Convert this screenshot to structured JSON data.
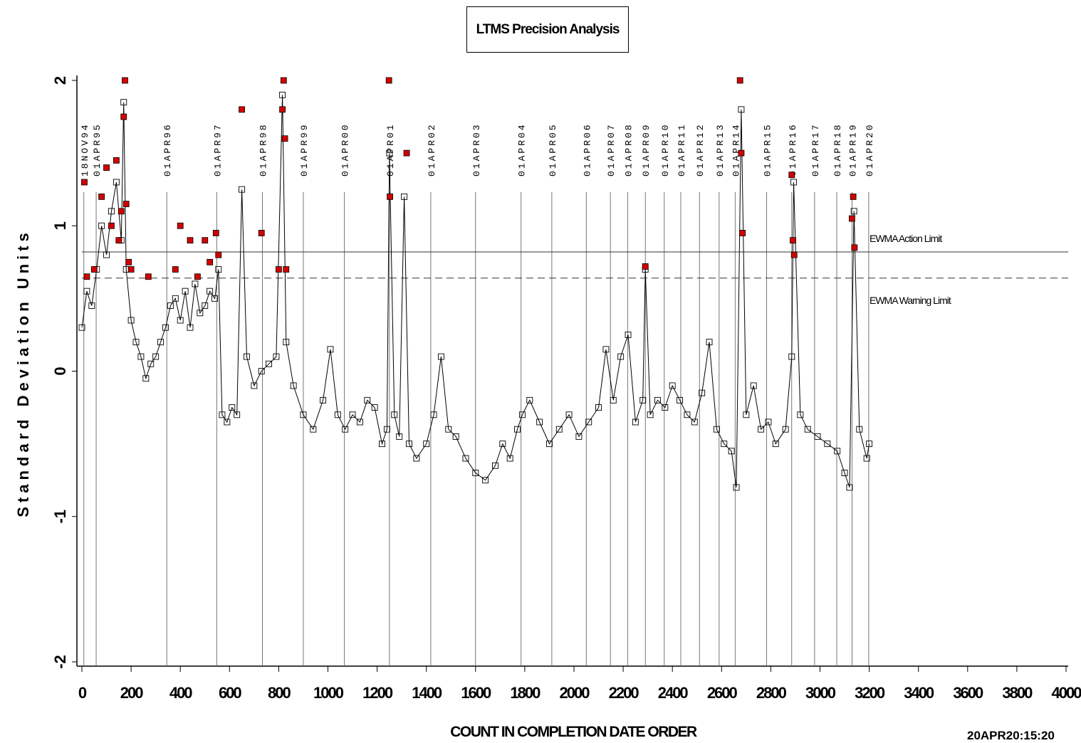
{
  "chart_data": {
    "type": "line",
    "title": "LTMS Precision Analysis",
    "xlabel": "COUNT IN COMPLETION DATE ORDER",
    "ylabel": "Standard Deviation Units",
    "xlim": [
      0,
      4000
    ],
    "ylim": [
      -2,
      2
    ],
    "x_ticks": [
      0,
      200,
      400,
      600,
      800,
      1000,
      1200,
      1400,
      1600,
      1800,
      2000,
      2200,
      2400,
      2600,
      2800,
      3000,
      3200,
      3400,
      3600,
      3800,
      4000
    ],
    "y_ticks": [
      -2,
      -1,
      0,
      1,
      2
    ],
    "y_tick_labels": [
      "-2",
      "-1",
      "0",
      "1",
      "2"
    ],
    "reference_lines": [
      {
        "name": "EWMA Action Limit",
        "y": 0.82,
        "style": "solid"
      },
      {
        "name": "EWMA Warning Limit",
        "y": 0.64,
        "style": "dashed"
      }
    ],
    "date_markers": [
      {
        "x": 8,
        "label": "18NOV94"
      },
      {
        "x": 58,
        "label": "01APR95"
      },
      {
        "x": 345,
        "label": "01APR96"
      },
      {
        "x": 548,
        "label": "01APR97"
      },
      {
        "x": 734,
        "label": "01APR98"
      },
      {
        "x": 900,
        "label": "01APR99"
      },
      {
        "x": 1067,
        "label": "01APR00"
      },
      {
        "x": 1250,
        "label": "01APR01"
      },
      {
        "x": 1418,
        "label": "01APR02"
      },
      {
        "x": 1600,
        "label": "01APR03"
      },
      {
        "x": 1785,
        "label": "01APR04"
      },
      {
        "x": 1910,
        "label": "01APR05"
      },
      {
        "x": 2050,
        "label": "01APR06"
      },
      {
        "x": 2148,
        "label": "01APR07"
      },
      {
        "x": 2218,
        "label": "01APR08"
      },
      {
        "x": 2290,
        "label": "01APR09"
      },
      {
        "x": 2367,
        "label": "01APR10"
      },
      {
        "x": 2434,
        "label": "01APR11"
      },
      {
        "x": 2510,
        "label": "01APR12"
      },
      {
        "x": 2590,
        "label": "01APR13"
      },
      {
        "x": 2655,
        "label": "01APR14"
      },
      {
        "x": 2783,
        "label": "01APR15"
      },
      {
        "x": 2885,
        "label": "01APR16"
      },
      {
        "x": 2978,
        "label": "01APR17"
      },
      {
        "x": 3068,
        "label": "01APR18"
      },
      {
        "x": 3130,
        "label": "01APR19"
      },
      {
        "x": 3198,
        "label": "01APR20"
      }
    ],
    "series": [
      {
        "marker": "open-square",
        "color": "#000000",
        "flagged_color": "#d40000",
        "x": [
          0,
          20,
          40,
          60,
          80,
          100,
          120,
          140,
          160,
          170,
          180,
          200,
          220,
          240,
          260,
          280,
          300,
          320,
          340,
          360,
          380,
          400,
          420,
          440,
          460,
          480,
          500,
          520,
          540,
          555,
          570,
          590,
          610,
          630,
          650,
          670,
          700,
          730,
          760,
          790,
          815,
          830,
          860,
          900,
          940,
          980,
          1010,
          1040,
          1070,
          1100,
          1130,
          1160,
          1190,
          1220,
          1240,
          1250,
          1270,
          1290,
          1310,
          1330,
          1360,
          1400,
          1430,
          1460,
          1490,
          1520,
          1560,
          1600,
          1640,
          1680,
          1710,
          1740,
          1770,
          1790,
          1820,
          1860,
          1900,
          1940,
          1980,
          2020,
          2060,
          2100,
          2130,
          2160,
          2190,
          2220,
          2250,
          2280,
          2290,
          2310,
          2340,
          2370,
          2400,
          2430,
          2460,
          2490,
          2520,
          2550,
          2580,
          2610,
          2640,
          2660,
          2680,
          2700,
          2730,
          2760,
          2790,
          2820,
          2860,
          2885,
          2893,
          2920,
          2950,
          2990,
          3030,
          3070,
          3100,
          3120,
          3138,
          3160,
          3190,
          3200
        ],
        "y": [
          0.3,
          0.55,
          0.45,
          0.7,
          1.0,
          0.8,
          1.1,
          1.3,
          0.9,
          1.85,
          0.7,
          0.35,
          0.2,
          0.1,
          -0.05,
          0.05,
          0.1,
          0.2,
          0.3,
          0.45,
          0.5,
          0.35,
          0.55,
          0.3,
          0.6,
          0.4,
          0.45,
          0.55,
          0.5,
          0.7,
          -0.3,
          -0.35,
          -0.25,
          -0.3,
          1.25,
          0.1,
          -0.1,
          0.0,
          0.05,
          0.1,
          1.9,
          0.2,
          -0.1,
          -0.3,
          -0.4,
          -0.2,
          0.15,
          -0.3,
          -0.4,
          -0.3,
          -0.35,
          -0.2,
          -0.25,
          -0.5,
          -0.4,
          1.5,
          -0.3,
          -0.45,
          1.2,
          -0.5,
          -0.6,
          -0.5,
          -0.3,
          0.1,
          -0.4,
          -0.45,
          -0.6,
          -0.7,
          -0.75,
          -0.65,
          -0.5,
          -0.6,
          -0.4,
          -0.3,
          -0.2,
          -0.35,
          -0.5,
          -0.4,
          -0.3,
          -0.45,
          -0.35,
          -0.25,
          0.15,
          -0.2,
          0.1,
          0.25,
          -0.35,
          -0.2,
          0.7,
          -0.3,
          -0.2,
          -0.25,
          -0.1,
          -0.2,
          -0.3,
          -0.35,
          -0.15,
          0.2,
          -0.4,
          -0.5,
          -0.55,
          -0.8,
          1.8,
          -0.3,
          -0.1,
          -0.4,
          -0.35,
          -0.5,
          -0.4,
          0.1,
          1.3,
          -0.3,
          -0.4,
          -0.45,
          -0.5,
          -0.55,
          -0.7,
          -0.8,
          1.1,
          -0.4,
          -0.6,
          -0.5
        ]
      }
    ],
    "flagged_x": [
      10,
      20,
      50,
      80,
      100,
      120,
      140,
      150,
      160,
      170,
      175,
      180,
      190,
      200,
      270,
      380,
      400,
      440,
      470,
      500,
      520,
      545,
      555,
      650,
      730,
      800,
      815,
      820,
      825,
      830,
      1248,
      1252,
      1320,
      2290,
      2675,
      2680,
      2685,
      2885,
      2890,
      2895,
      3130,
      3135,
      3140
    ],
    "flagged_y": [
      1.3,
      0.65,
      0.7,
      1.2,
      1.4,
      1.0,
      1.45,
      0.9,
      1.1,
      1.75,
      2.0,
      1.15,
      0.75,
      0.7,
      0.65,
      0.7,
      1.0,
      0.9,
      0.65,
      0.9,
      0.75,
      0.95,
      0.8,
      1.8,
      0.95,
      0.7,
      1.8,
      2.0,
      1.6,
      0.7,
      2.0,
      1.2,
      1.5,
      0.72,
      2.0,
      1.5,
      0.95,
      1.35,
      0.9,
      0.8,
      1.05,
      1.2,
      0.85
    ],
    "footer": "20APR20:15:20"
  }
}
